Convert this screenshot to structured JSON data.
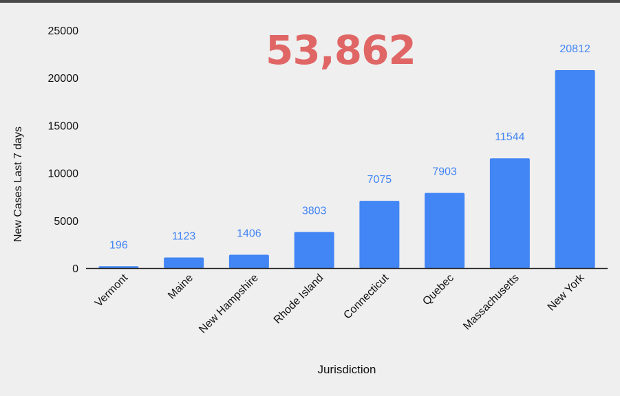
{
  "total": "53,862",
  "colors": {
    "bar": "#4285f4",
    "label": "#4285f4",
    "total": "#e06666",
    "axis": "#222222",
    "text": "#111111"
  },
  "chart_data": {
    "type": "bar",
    "categories": [
      "Vermont",
      "Maine",
      "New Hampshire",
      "Rhode Island",
      "Connecticut",
      "Quebec",
      "Massachusetts",
      "New York"
    ],
    "values": [
      196,
      1123,
      1406,
      3803,
      7075,
      7903,
      11544,
      20812
    ],
    "data_labels": [
      "196",
      "1123",
      "1406",
      "3803",
      "7075",
      "7903",
      "11544",
      "20812"
    ],
    "xlabel": "Jurisdiction",
    "ylabel": "New Cases Last 7 days",
    "ylim": [
      0,
      25000
    ],
    "yticks": [
      0,
      5000,
      10000,
      15000,
      20000,
      25000
    ],
    "ytick_labels": [
      "0",
      "5000",
      "10000",
      "15000",
      "20000",
      "25000"
    ],
    "grid": false
  }
}
